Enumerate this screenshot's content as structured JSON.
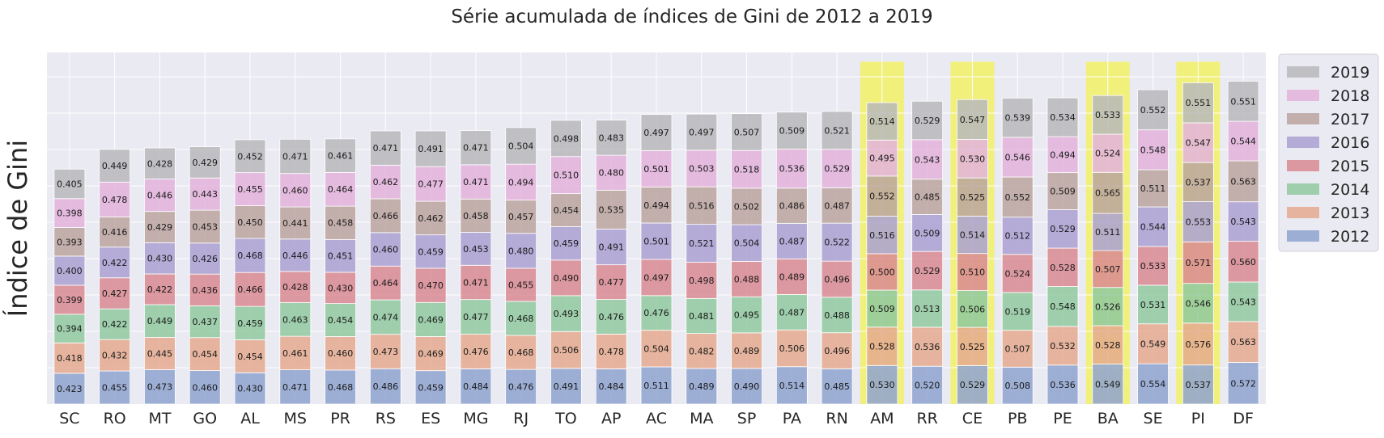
{
  "chart_data": {
    "type": "bar",
    "stacked": true,
    "title": "Série acumulada de índices de Gini de 2012 a 2019",
    "ylabel": "Índice de Gini",
    "xlabel": "",
    "grid": true,
    "y_tick_labels_visible": false,
    "legend_position": "outside-top-right",
    "categories": [
      "SC",
      "RO",
      "MT",
      "GO",
      "AL",
      "MS",
      "PR",
      "RS",
      "ES",
      "MG",
      "RJ",
      "TO",
      "AP",
      "AC",
      "MA",
      "SP",
      "PA",
      "RN",
      "AM",
      "RR",
      "CE",
      "PB",
      "PE",
      "BA",
      "SE",
      "PI",
      "DF"
    ],
    "highlighted_categories": [
      "AM",
      "CE",
      "BA",
      "PI"
    ],
    "highlight_color": "#f0f07a",
    "series": [
      {
        "name": "2012",
        "color": "#8fa3d0",
        "values": [
          0.423,
          0.455,
          0.473,
          0.46,
          0.43,
          0.471,
          0.468,
          0.486,
          0.459,
          0.484,
          0.476,
          0.491,
          0.484,
          0.511,
          0.489,
          0.49,
          0.514,
          0.485,
          0.53,
          0.52,
          0.529,
          0.508,
          0.536,
          0.549,
          0.554,
          0.537,
          0.572
        ]
      },
      {
        "name": "2013",
        "color": "#e5aa8f",
        "values": [
          0.418,
          0.432,
          0.445,
          0.454,
          0.454,
          0.461,
          0.46,
          0.473,
          0.469,
          0.476,
          0.468,
          0.506,
          0.478,
          0.504,
          0.482,
          0.489,
          0.506,
          0.496,
          0.528,
          0.536,
          0.525,
          0.507,
          0.532,
          0.528,
          0.549,
          0.576,
          0.563
        ]
      },
      {
        "name": "2014",
        "color": "#91c99f",
        "values": [
          0.394,
          0.422,
          0.449,
          0.437,
          0.459,
          0.463,
          0.454,
          0.474,
          0.469,
          0.477,
          0.468,
          0.493,
          0.476,
          0.476,
          0.481,
          0.495,
          0.487,
          0.488,
          0.509,
          0.513,
          0.506,
          0.519,
          0.548,
          0.526,
          0.531,
          0.546,
          0.543
        ]
      },
      {
        "name": "2015",
        "color": "#d98a92",
        "values": [
          0.399,
          0.427,
          0.422,
          0.436,
          0.466,
          0.428,
          0.43,
          0.464,
          0.47,
          0.471,
          0.455,
          0.49,
          0.477,
          0.497,
          0.498,
          0.488,
          0.489,
          0.496,
          0.5,
          0.529,
          0.51,
          0.524,
          0.528,
          0.507,
          0.533,
          0.571,
          0.56
        ]
      },
      {
        "name": "2016",
        "color": "#aaa0d2",
        "values": [
          0.4,
          0.422,
          0.43,
          0.426,
          0.468,
          0.446,
          0.451,
          0.46,
          0.459,
          0.453,
          0.48,
          0.459,
          0.491,
          0.501,
          0.521,
          0.504,
          0.487,
          0.522,
          0.516,
          0.509,
          0.514,
          0.512,
          0.529,
          0.511,
          0.544,
          0.553,
          0.543
        ]
      },
      {
        "name": "2017",
        "color": "#bba59f",
        "values": [
          0.393,
          0.416,
          0.429,
          0.453,
          0.45,
          0.441,
          0.458,
          0.466,
          0.462,
          0.458,
          0.457,
          0.454,
          0.535,
          0.494,
          0.516,
          0.502,
          0.486,
          0.487,
          0.552,
          0.485,
          0.525,
          0.552,
          0.509,
          0.565,
          0.511,
          0.537,
          0.563
        ]
      },
      {
        "name": "2018",
        "color": "#e3b3dc",
        "values": [
          0.398,
          0.478,
          0.446,
          0.443,
          0.455,
          0.46,
          0.464,
          0.462,
          0.477,
          0.471,
          0.494,
          0.51,
          0.48,
          0.501,
          0.503,
          0.518,
          0.536,
          0.529,
          0.495,
          0.543,
          0.53,
          0.546,
          0.494,
          0.524,
          0.548,
          0.547,
          0.544
        ]
      },
      {
        "name": "2019",
        "color": "#b8b8bc",
        "values": [
          0.405,
          0.449,
          0.428,
          0.429,
          0.452,
          0.471,
          0.461,
          0.471,
          0.491,
          0.471,
          0.504,
          0.498,
          0.483,
          0.497,
          0.497,
          0.507,
          0.509,
          0.521,
          0.514,
          0.529,
          0.547,
          0.539,
          0.534,
          0.533,
          0.552,
          0.551,
          0.551
        ]
      }
    ]
  }
}
